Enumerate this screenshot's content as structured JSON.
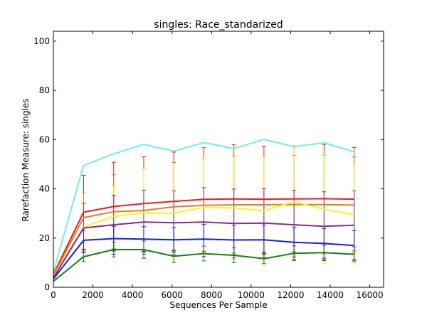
{
  "chart_data": {
    "type": "line",
    "title": "singles: Race_standarized",
    "xlabel": "Sequences Per Sample",
    "ylabel": "Rarefaction Measure: singles",
    "xlim": [
      0,
      16700
    ],
    "ylim": [
      0,
      104
    ],
    "xticks": [
      0,
      2000,
      4000,
      6000,
      8000,
      10000,
      12000,
      14000,
      16000
    ],
    "yticks": [
      0,
      20,
      40,
      60,
      80,
      100
    ],
    "grid": false,
    "x": [
      10,
      1530,
      3050,
      4570,
      6090,
      7610,
      9130,
      10650,
      12170,
      13690,
      15210
    ],
    "series": [
      {
        "color": "#70eeee",
        "values": [
          6.5,
          49.5,
          54.2,
          58.0,
          55.3,
          58.8,
          56.4,
          60.1,
          57.1,
          58.7,
          55.0
        ],
        "errors": [
          0,
          0,
          0,
          0,
          0,
          0,
          0,
          0,
          0,
          0,
          0
        ]
      },
      {
        "color": "#ee1c1c",
        "values": [
          5.5,
          30.5,
          32.8,
          34.0,
          34.9,
          35.7,
          35.9,
          35.8,
          35.9,
          36.0,
          35.8
        ],
        "errors": [
          0,
          15.0,
          18.0,
          19.0,
          20.0,
          21.0,
          22.0,
          21.5,
          21.5,
          22.0,
          21.0
        ]
      },
      {
        "color": "#e87c1e",
        "values": [
          5.0,
          28.3,
          30.7,
          31.2,
          32.7,
          33.3,
          33.5,
          33.5,
          33.6,
          33.6,
          33.4
        ],
        "errors": [
          0,
          10.0,
          15.0,
          17.0,
          18.0,
          19.0,
          19.5,
          19.5,
          20.0,
          20.0,
          19.5
        ]
      },
      {
        "color": "#f5f51e",
        "values": [
          4.5,
          24.4,
          28.8,
          30.2,
          30.2,
          32.4,
          32.2,
          31.1,
          34.8,
          31.7,
          29.5
        ],
        "errors": [
          0,
          10.0,
          12.0,
          18.0,
          20.0,
          20.0,
          21.0,
          22.0,
          22.0,
          22.0,
          20.0
        ]
      },
      {
        "color": "#8b2a8b",
        "values": [
          4.0,
          24.1,
          25.4,
          26.5,
          26.2,
          26.5,
          25.9,
          26.1,
          25.4,
          24.8,
          25.2
        ],
        "errors": [
          0,
          10.0,
          12.0,
          13.0,
          13.0,
          14.0,
          14.0,
          14.0,
          14.0,
          14.0,
          14.0
        ]
      },
      {
        "color": "#1c1cdd",
        "values": [
          3.5,
          19.1,
          19.8,
          19.6,
          19.3,
          19.6,
          19.2,
          19.3,
          18.3,
          17.8,
          17.0
        ],
        "errors": [
          0,
          4.0,
          5.0,
          5.0,
          5.0,
          6.0,
          6.0,
          6.0,
          6.0,
          6.0,
          6.0
        ]
      },
      {
        "color": "#128212",
        "values": [
          2.5,
          12.4,
          15.3,
          15.3,
          12.6,
          13.7,
          13.0,
          11.6,
          13.8,
          14.1,
          13.4
        ],
        "errors": [
          0,
          2.0,
          3.0,
          3.5,
          2.5,
          3.0,
          3.0,
          2.0,
          3.0,
          3.0,
          3.0
        ]
      }
    ]
  }
}
